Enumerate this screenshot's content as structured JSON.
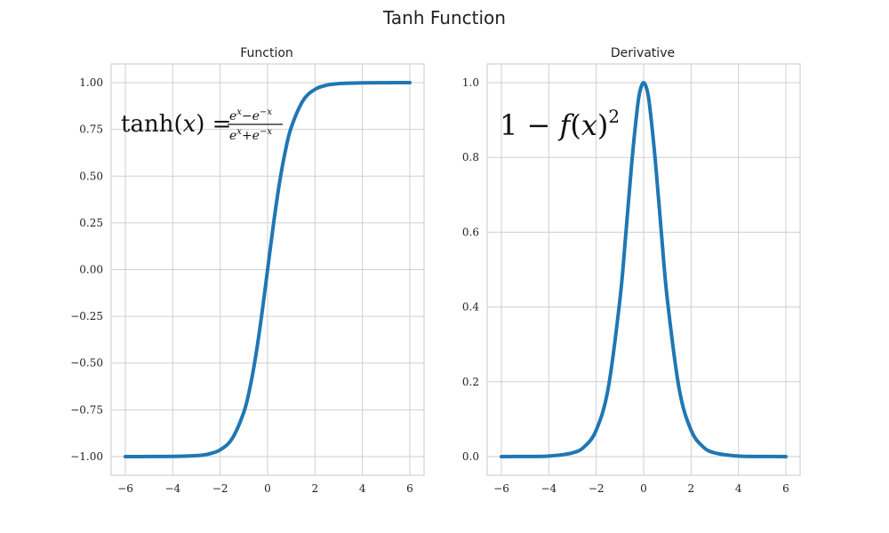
{
  "figure_title": "Tanh Function",
  "colors": {
    "series": "#1f77b4"
  },
  "chart_data": [
    {
      "type": "line",
      "title": "Function",
      "xlabel": "",
      "ylabel": "",
      "xlim": [
        -6.6,
        6.6
      ],
      "ylim": [
        -1.1,
        1.1
      ],
      "xticks": [
        -6,
        -4,
        -2,
        0,
        2,
        4,
        6
      ],
      "xtick_labels": [
        "−6",
        "−4",
        "−2",
        "0",
        "2",
        "4",
        "6"
      ],
      "yticks": [
        -1.0,
        -0.75,
        -0.5,
        -0.25,
        0.0,
        0.25,
        0.5,
        0.75,
        1.0
      ],
      "ytick_labels": [
        "−1.00",
        "−0.75",
        "−0.50",
        "−0.25",
        "0.00",
        "0.25",
        "0.50",
        "0.75",
        "1.00"
      ],
      "grid": true,
      "annotation": "tanh(x) = (e^x − e^−x)/(e^x + e^−x)",
      "series": [
        {
          "x": [
            -6,
            -5,
            -4,
            -3,
            -2.5,
            -2,
            -1.5,
            -1,
            -0.75,
            -0.5,
            -0.25,
            0,
            0.25,
            0.5,
            0.75,
            1,
            1.5,
            2,
            2.5,
            3,
            4,
            5,
            6
          ],
          "y": [
            -1.0,
            -0.9999,
            -0.9993,
            -0.9951,
            -0.9866,
            -0.964,
            -0.9051,
            -0.7616,
            -0.6351,
            -0.4621,
            -0.2449,
            0.0,
            0.2449,
            0.4621,
            0.6351,
            0.7616,
            0.9051,
            0.964,
            0.9866,
            0.9951,
            0.9993,
            0.9999,
            1.0
          ]
        }
      ]
    },
    {
      "type": "line",
      "title": "Derivative",
      "xlabel": "",
      "ylabel": "",
      "xlim": [
        -6.6,
        6.6
      ],
      "ylim": [
        -0.05,
        1.05
      ],
      "xticks": [
        -6,
        -4,
        -2,
        0,
        2,
        4,
        6
      ],
      "xtick_labels": [
        "−6",
        "−4",
        "−2",
        "0",
        "2",
        "4",
        "6"
      ],
      "yticks": [
        0.0,
        0.2,
        0.4,
        0.6,
        0.8,
        1.0
      ],
      "ytick_labels": [
        "0.0",
        "0.2",
        "0.4",
        "0.6",
        "0.8",
        "1.0"
      ],
      "grid": true,
      "annotation": "1 − f(x)^2",
      "series": [
        {
          "x": [
            -6,
            -5,
            -4,
            -3,
            -2.5,
            -2,
            -1.5,
            -1,
            -0.75,
            -0.5,
            -0.25,
            -0.125,
            0,
            0.125,
            0.25,
            0.5,
            0.75,
            1,
            1.5,
            2,
            2.5,
            3,
            4,
            5,
            6
          ],
          "y": [
            0.0,
            0.0002,
            0.0013,
            0.0099,
            0.0266,
            0.0707,
            0.1807,
            0.42,
            0.5966,
            0.7864,
            0.9401,
            0.9845,
            1.0,
            0.9845,
            0.9401,
            0.7864,
            0.5966,
            0.42,
            0.1807,
            0.0707,
            0.0266,
            0.0099,
            0.0013,
            0.0002,
            0.0
          ]
        }
      ]
    }
  ]
}
